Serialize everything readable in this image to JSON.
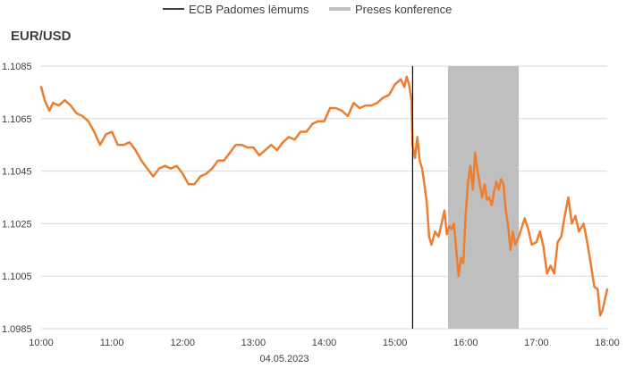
{
  "chart_data": {
    "type": "line",
    "title": "EUR/USD",
    "date_label": "04.05.2023",
    "legend": [
      {
        "label": "ECB Padomes lēmums",
        "color": "#000000",
        "kind": "line"
      },
      {
        "label": "Preses konference",
        "color": "#bfbfbf",
        "kind": "band"
      }
    ],
    "x_axis": {
      "type": "time",
      "range": [
        "10:00",
        "18:00"
      ],
      "tick_labels": [
        "10:00",
        "11:00",
        "12:00",
        "13:00",
        "14:00",
        "15:00",
        "16:00",
        "17:00",
        "18:00"
      ]
    },
    "y_axis": {
      "range": [
        1.0985,
        1.1085
      ],
      "tick_labels": [
        "1.1085",
        "1.1065",
        "1.1045",
        "1.1025",
        "1.1005",
        "1.0985"
      ],
      "gridlines": true
    },
    "ecb_decision_time": "15:15",
    "press_conference": {
      "start": "15:45",
      "end": "16:45"
    },
    "series": [
      {
        "color": "#ed7d31",
        "points": [
          [
            "10:00",
            1.1077
          ],
          [
            "10:03",
            1.1072
          ],
          [
            "10:07",
            1.1068
          ],
          [
            "10:10",
            1.1071
          ],
          [
            "10:15",
            1.107
          ],
          [
            "10:20",
            1.1072
          ],
          [
            "10:25",
            1.107
          ],
          [
            "10:30",
            1.1067
          ],
          [
            "10:35",
            1.1066
          ],
          [
            "10:40",
            1.1064
          ],
          [
            "10:45",
            1.106
          ],
          [
            "10:50",
            1.1055
          ],
          [
            "10:55",
            1.1059
          ],
          [
            "11:00",
            1.106
          ],
          [
            "11:05",
            1.1055
          ],
          [
            "11:10",
            1.1055
          ],
          [
            "11:15",
            1.1056
          ],
          [
            "11:20",
            1.1053
          ],
          [
            "11:25",
            1.1049
          ],
          [
            "11:30",
            1.1046
          ],
          [
            "11:35",
            1.1043
          ],
          [
            "11:40",
            1.1046
          ],
          [
            "11:45",
            1.1047
          ],
          [
            "11:50",
            1.1046
          ],
          [
            "11:55",
            1.1047
          ],
          [
            "12:00",
            1.1044
          ],
          [
            "12:05",
            1.104
          ],
          [
            "12:10",
            1.104
          ],
          [
            "12:15",
            1.1043
          ],
          [
            "12:20",
            1.1044
          ],
          [
            "12:25",
            1.1046
          ],
          [
            "12:30",
            1.1049
          ],
          [
            "12:35",
            1.1049
          ],
          [
            "12:40",
            1.1052
          ],
          [
            "12:45",
            1.1055
          ],
          [
            "12:50",
            1.1055
          ],
          [
            "12:55",
            1.1054
          ],
          [
            "13:00",
            1.1054
          ],
          [
            "13:05",
            1.1051
          ],
          [
            "13:10",
            1.1053
          ],
          [
            "13:15",
            1.1055
          ],
          [
            "13:20",
            1.1053
          ],
          [
            "13:25",
            1.1056
          ],
          [
            "13:30",
            1.1058
          ],
          [
            "13:35",
            1.1057
          ],
          [
            "13:40",
            1.106
          ],
          [
            "13:45",
            1.106
          ],
          [
            "13:50",
            1.1063
          ],
          [
            "13:55",
            1.1064
          ],
          [
            "14:00",
            1.1064
          ],
          [
            "14:05",
            1.1069
          ],
          [
            "14:10",
            1.1069
          ],
          [
            "14:15",
            1.1068
          ],
          [
            "14:20",
            1.1066
          ],
          [
            "14:25",
            1.1071
          ],
          [
            "14:30",
            1.1069
          ],
          [
            "14:35",
            1.107
          ],
          [
            "14:40",
            1.107
          ],
          [
            "14:45",
            1.1071
          ],
          [
            "14:50",
            1.1073
          ],
          [
            "14:55",
            1.1074
          ],
          [
            "15:00",
            1.1078
          ],
          [
            "15:05",
            1.108
          ],
          [
            "15:08",
            1.1077
          ],
          [
            "15:10",
            1.1081
          ],
          [
            "15:12",
            1.1078
          ],
          [
            "15:14",
            1.1072
          ],
          [
            "15:15",
            1.1055
          ],
          [
            "15:17",
            1.105
          ],
          [
            "15:19",
            1.1058
          ],
          [
            "15:21",
            1.1049
          ],
          [
            "15:23",
            1.1046
          ],
          [
            "15:25",
            1.104
          ],
          [
            "15:27",
            1.1033
          ],
          [
            "15:29",
            1.102
          ],
          [
            "15:31",
            1.1017
          ],
          [
            "15:34",
            1.1022
          ],
          [
            "15:37",
            1.102
          ],
          [
            "15:40",
            1.1026
          ],
          [
            "15:42",
            1.103
          ],
          [
            "15:44",
            1.1021
          ],
          [
            "15:46",
            1.1024
          ],
          [
            "15:48",
            1.1023
          ],
          [
            "15:50",
            1.1025
          ],
          [
            "15:52",
            1.1015
          ],
          [
            "15:54",
            1.1005
          ],
          [
            "15:56",
            1.1012
          ],
          [
            "15:58",
            1.101
          ],
          [
            "16:00",
            1.1029
          ],
          [
            "16:02",
            1.1041
          ],
          [
            "16:04",
            1.1047
          ],
          [
            "16:06",
            1.1038
          ],
          [
            "16:08",
            1.1052
          ],
          [
            "16:10",
            1.1045
          ],
          [
            "16:12",
            1.104
          ],
          [
            "16:14",
            1.1035
          ],
          [
            "16:16",
            1.104
          ],
          [
            "16:18",
            1.1034
          ],
          [
            "16:20",
            1.1035
          ],
          [
            "16:22",
            1.1032
          ],
          [
            "16:24",
            1.1037
          ],
          [
            "16:26",
            1.1041
          ],
          [
            "16:28",
            1.1038
          ],
          [
            "16:30",
            1.1042
          ],
          [
            "16:32",
            1.104
          ],
          [
            "16:34",
            1.103
          ],
          [
            "16:36",
            1.1024
          ],
          [
            "16:38",
            1.1015
          ],
          [
            "16:40",
            1.1022
          ],
          [
            "16:42",
            1.1017
          ],
          [
            "16:45",
            1.102
          ],
          [
            "16:50",
            1.1027
          ],
          [
            "16:53",
            1.1023
          ],
          [
            "16:56",
            1.1017
          ],
          [
            "17:00",
            1.1018
          ],
          [
            "17:03",
            1.1022
          ],
          [
            "17:06",
            1.1016
          ],
          [
            "17:09",
            1.1006
          ],
          [
            "17:12",
            1.1009
          ],
          [
            "17:15",
            1.1006
          ],
          [
            "17:18",
            1.1018
          ],
          [
            "17:21",
            1.102
          ],
          [
            "17:24",
            1.1028
          ],
          [
            "17:27",
            1.1035
          ],
          [
            "17:30",
            1.1025
          ],
          [
            "17:33",
            1.1028
          ],
          [
            "17:36",
            1.1022
          ],
          [
            "17:40",
            1.1025
          ],
          [
            "17:43",
            1.1018
          ],
          [
            "17:46",
            1.101
          ],
          [
            "17:49",
            1.1001
          ],
          [
            "17:52",
            1.1
          ],
          [
            "17:54",
            1.099
          ],
          [
            "17:56",
            1.0992
          ],
          [
            "17:58",
            1.0996
          ],
          [
            "18:00",
            1.1
          ]
        ]
      }
    ]
  }
}
